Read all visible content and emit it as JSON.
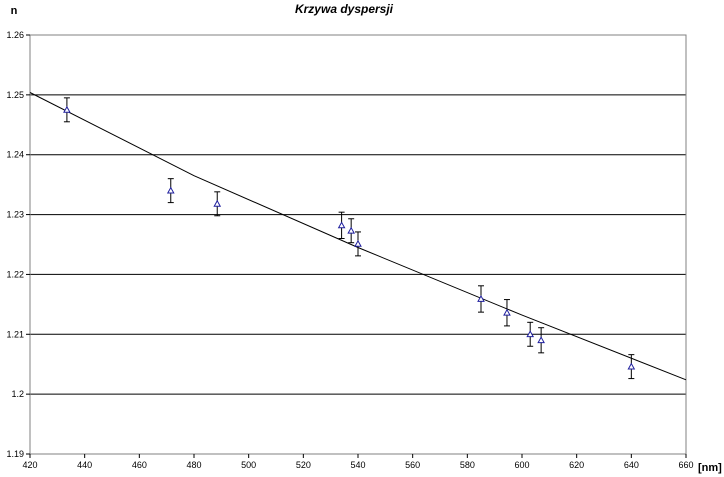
{
  "chart_data": {
    "type": "scatter",
    "title": "Krzywa dyspersji",
    "xlabel": "[nm]",
    "ylabel": "n",
    "xlim": [
      420,
      660
    ],
    "ylim": [
      1.19,
      1.26
    ],
    "x_ticks": [
      "420",
      "440",
      "460",
      "480",
      "500",
      "520",
      "540",
      "560",
      "580",
      "600",
      "620",
      "640",
      "660"
    ],
    "y_ticks": [
      "1.19",
      "1.2",
      "1.21",
      "1.22",
      "1.23",
      "1.24",
      "1.25",
      "1.26"
    ],
    "grid": "horizontal",
    "series": [
      {
        "marker": "triangle",
        "color": "#1f1f9e",
        "points": [
          {
            "x": 433.5,
            "y": 1.2475,
            "err": 0.002
          },
          {
            "x": 471.5,
            "y": 1.234,
            "err": 0.002
          },
          {
            "x": 488.5,
            "y": 1.2318,
            "err": 0.002
          },
          {
            "x": 534,
            "y": 1.2282,
            "err": 0.0022
          },
          {
            "x": 537.5,
            "y": 1.2273,
            "err": 0.002
          },
          {
            "x": 540,
            "y": 1.2251,
            "err": 0.002
          },
          {
            "x": 585,
            "y": 1.2159,
            "err": 0.0022
          },
          {
            "x": 594.5,
            "y": 1.2136,
            "err": 0.0022
          },
          {
            "x": 603,
            "y": 1.21,
            "err": 0.002
          },
          {
            "x": 607,
            "y": 1.209,
            "err": 0.0021
          },
          {
            "x": 640,
            "y": 1.2046,
            "err": 0.002
          }
        ]
      }
    ],
    "fit_line": {
      "color": "#000000",
      "points": [
        {
          "x": 420,
          "y": 1.2504
        },
        {
          "x": 480,
          "y": 1.2365
        },
        {
          "x": 540,
          "y": 1.2245
        },
        {
          "x": 600,
          "y": 1.2132
        },
        {
          "x": 660,
          "y": 1.2024
        }
      ]
    }
  }
}
